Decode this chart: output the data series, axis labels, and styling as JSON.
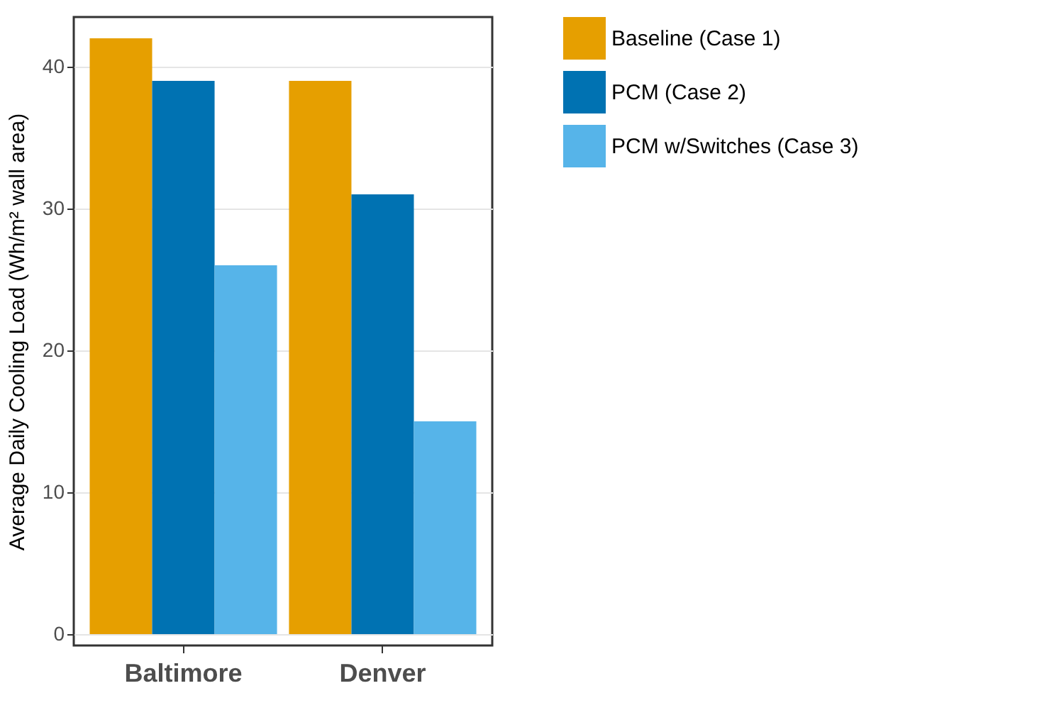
{
  "chart_data": {
    "type": "bar",
    "ylabel": "Average Daily Cooling Load (Wh/m² wall area)",
    "categories": [
      "Baltimore",
      "Denver"
    ],
    "series": [
      {
        "name": "Baseline (Case 1)",
        "color": "#e69f00",
        "values": [
          42,
          39
        ]
      },
      {
        "name": "PCM (Case 2)",
        "color": "#0072b2",
        "values": [
          39,
          31
        ]
      },
      {
        "name": "PCM w/Switches (Case 3)",
        "color": "#56b4e9",
        "values": [
          26,
          15
        ]
      }
    ],
    "ylim": [
      -0.8,
      43.5
    ],
    "yticks": [
      0,
      10,
      20,
      30,
      40
    ],
    "grid": "y",
    "legend": "right"
  }
}
